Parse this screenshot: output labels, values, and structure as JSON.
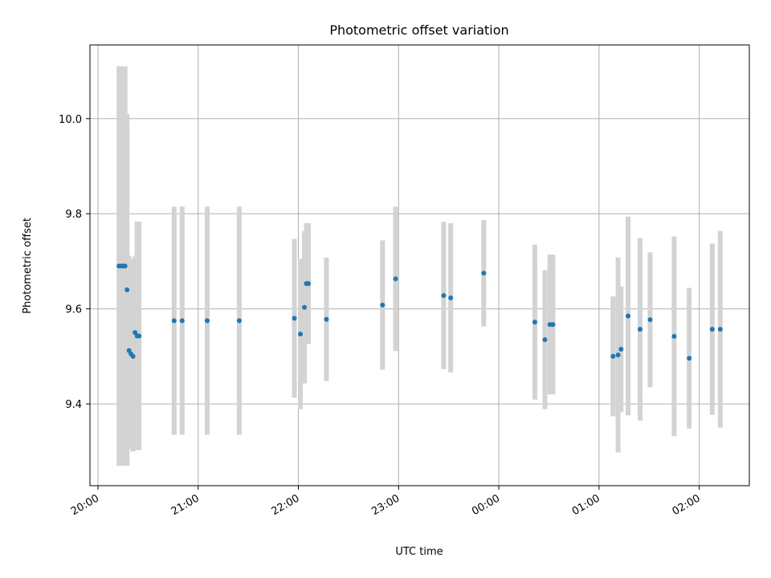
{
  "chart_data": {
    "type": "scatter",
    "title": "Photometric offset variation",
    "xlabel": "UTC time",
    "ylabel": "Photometric offset",
    "grid": true,
    "x_tick_labels": [
      "20:00",
      "21:00",
      "22:00",
      "23:00",
      "00:00",
      "01:00",
      "02:00"
    ],
    "x_ticks_hours": [
      0,
      1,
      2,
      3,
      4,
      5,
      6
    ],
    "x_range_hours": [
      -0.08,
      6.5
    ],
    "x_unit_note": "hours after 20:00 UTC",
    "y_ticks": [
      9.4,
      9.6,
      9.8,
      10.0
    ],
    "ylim": [
      9.228,
      10.155
    ],
    "colors": {
      "point": "#1f77b4",
      "errorbar": "#d3d3d3",
      "grid": "#b0b0b0"
    },
    "series": [
      {
        "points": [
          {
            "x": 0.21,
            "y": 9.69,
            "err": 0.42
          },
          {
            "x": 0.23,
            "y": 9.69,
            "err": 0.42
          },
          {
            "x": 0.25,
            "y": 9.69,
            "err": 0.42
          },
          {
            "x": 0.27,
            "y": 9.69,
            "err": 0.42
          },
          {
            "x": 0.29,
            "y": 9.64,
            "err": 0.37
          },
          {
            "x": 0.31,
            "y": 9.512,
            "err": 0.2
          },
          {
            "x": 0.33,
            "y": 9.505,
            "err": 0.2
          },
          {
            "x": 0.35,
            "y": 9.5,
            "err": 0.2
          },
          {
            "x": 0.37,
            "y": 9.55,
            "err": 0.16
          },
          {
            "x": 0.39,
            "y": 9.543,
            "err": 0.24
          },
          {
            "x": 0.41,
            "y": 9.543,
            "err": 0.24
          },
          {
            "x": 0.76,
            "y": 9.575,
            "err": 0.24
          },
          {
            "x": 0.84,
            "y": 9.575,
            "err": 0.24
          },
          {
            "x": 1.09,
            "y": 9.575,
            "err": 0.24
          },
          {
            "x": 1.41,
            "y": 9.575,
            "err": 0.24
          },
          {
            "x": 1.96,
            "y": 9.58,
            "err": 0.167
          },
          {
            "x": 2.02,
            "y": 9.547,
            "err": 0.158
          },
          {
            "x": 2.06,
            "y": 9.603,
            "err": 0.16
          },
          {
            "x": 2.08,
            "y": 9.653,
            "err": 0.127
          },
          {
            "x": 2.1,
            "y": 9.653,
            "err": 0.127
          },
          {
            "x": 2.28,
            "y": 9.578,
            "err": 0.13
          },
          {
            "x": 2.84,
            "y": 9.608,
            "err": 0.136
          },
          {
            "x": 2.97,
            "y": 9.663,
            "err": 0.152
          },
          {
            "x": 3.45,
            "y": 9.628,
            "err": 0.155
          },
          {
            "x": 3.52,
            "y": 9.623,
            "err": 0.157
          },
          {
            "x": 3.85,
            "y": 9.675,
            "err": 0.112
          },
          {
            "x": 4.36,
            "y": 9.572,
            "err": 0.163
          },
          {
            "x": 4.46,
            "y": 9.535,
            "err": 0.146
          },
          {
            "x": 4.51,
            "y": 9.567,
            "err": 0.147
          },
          {
            "x": 4.54,
            "y": 9.567,
            "err": 0.147
          },
          {
            "x": 5.14,
            "y": 9.5,
            "err": 0.126
          },
          {
            "x": 5.19,
            "y": 9.503,
            "err": 0.205
          },
          {
            "x": 5.22,
            "y": 9.515,
            "err": 0.132
          },
          {
            "x": 5.29,
            "y": 9.585,
            "err": 0.209
          },
          {
            "x": 5.41,
            "y": 9.557,
            "err": 0.192
          },
          {
            "x": 5.51,
            "y": 9.577,
            "err": 0.142
          },
          {
            "x": 5.75,
            "y": 9.542,
            "err": 0.21
          },
          {
            "x": 5.9,
            "y": 9.496,
            "err": 0.148
          },
          {
            "x": 6.13,
            "y": 9.557,
            "err": 0.18
          },
          {
            "x": 6.21,
            "y": 9.557,
            "err": 0.207
          }
        ]
      }
    ]
  }
}
